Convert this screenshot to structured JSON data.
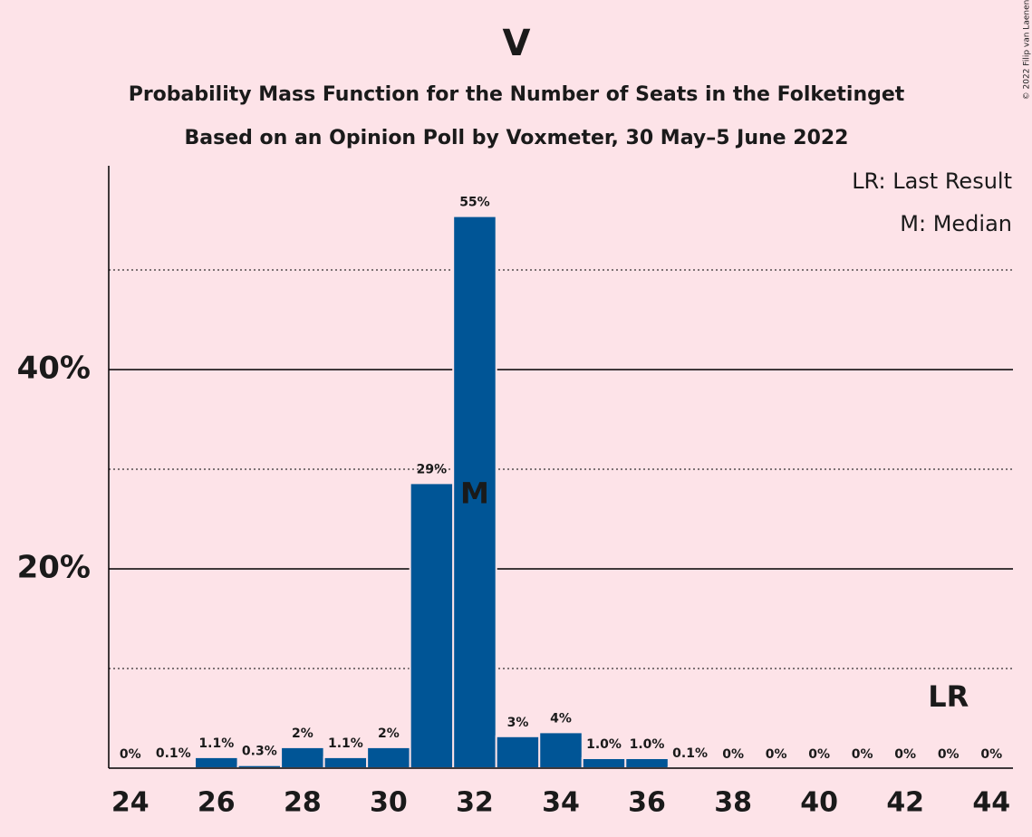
{
  "chart_data": {
    "type": "bar",
    "title": "V",
    "subtitle": [
      "Probability Mass Function for the Number of Seats in the Folketinget",
      "Based on an Opinion Poll by Voxmeter, 30 May–5 June 2022"
    ],
    "copyright": "© 2022 Filip van Laenen",
    "x": [
      24,
      25,
      26,
      27,
      28,
      29,
      30,
      31,
      32,
      33,
      34,
      35,
      36,
      37,
      38,
      39,
      40,
      41,
      42,
      43,
      44
    ],
    "values": [
      0,
      0.1,
      1.1,
      0.3,
      2.1,
      1.1,
      2.1,
      28.6,
      55.4,
      3.2,
      3.6,
      1.0,
      1.0,
      0.1,
      0,
      0,
      0,
      0,
      0,
      0,
      0
    ],
    "value_labels": [
      "0%",
      "0.1%",
      "1.1%",
      "0.3%",
      "2%",
      "1.1%",
      "2%",
      "29%",
      "55%",
      "3%",
      "4%",
      "1.0%",
      "1.0%",
      "0.1%",
      "0%",
      "0%",
      "0%",
      "0%",
      "0%",
      "0%",
      "0%"
    ],
    "color": "#005596",
    "xlim": [
      23.5,
      44.5
    ],
    "xticks": [
      24,
      26,
      28,
      30,
      32,
      34,
      36,
      38,
      40,
      42,
      44
    ],
    "ylim": [
      0,
      60
    ],
    "yticks": [
      {
        "value": 20,
        "label": "20%"
      },
      {
        "value": 40,
        "label": "40%"
      }
    ],
    "minor_grid": [
      10,
      30,
      50
    ],
    "grid": true,
    "median": {
      "x": 32,
      "label": "M"
    },
    "last_result": {
      "x": 43,
      "label": "LR"
    },
    "legend": [
      "LR: Last Result",
      "M: Median"
    ],
    "legend_position": "upper right"
  }
}
